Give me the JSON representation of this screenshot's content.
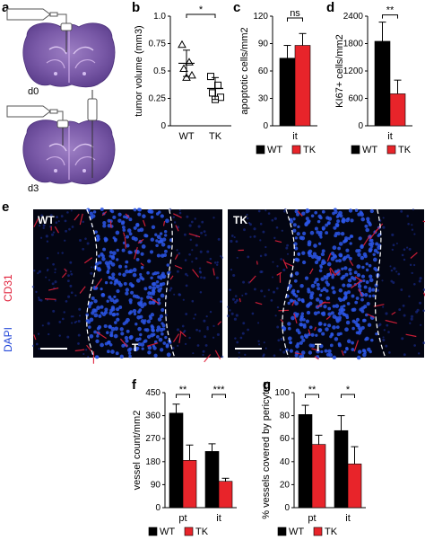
{
  "panels": {
    "a": "a",
    "b": "b",
    "c": "c",
    "d": "d",
    "e": "e",
    "f": "f",
    "g": "g"
  },
  "brain": {
    "d0": "d0",
    "d3": "d3"
  },
  "legend": {
    "wt": "WT",
    "tk": "TK"
  },
  "micro": {
    "wt": "WT",
    "tk": "TK",
    "t1": "T",
    "t2": "T",
    "cd31": "CD31",
    "dapi": "DAPI"
  },
  "colors": {
    "wt": "#000000",
    "tk": "#e8242a",
    "dapi": "#2448d8",
    "cd31": "#e0203a"
  },
  "chart_data": [
    {
      "id": "b",
      "type": "scatter",
      "ylabel": "tumor volume (mm3)",
      "ylim": [
        0,
        1.0
      ],
      "yticks": [
        0,
        0.25,
        0.5,
        0.75,
        1.0
      ],
      "categories": [
        "WT",
        "TK"
      ],
      "groups": [
        {
          "name": "WT",
          "points": [
            0.74,
            0.58,
            0.52,
            0.46,
            0.44
          ],
          "mean": 0.57,
          "error": 0.12
        },
        {
          "name": "TK",
          "points": [
            0.45,
            0.37,
            0.3,
            0.26,
            0.24
          ],
          "mean": 0.34,
          "error": 0.1
        }
      ],
      "significance": "*"
    },
    {
      "id": "c",
      "type": "bar",
      "ylabel": "apoptotic cells/mm2",
      "ylim": [
        0,
        120
      ],
      "yticks": [
        0,
        30,
        60,
        90,
        120
      ],
      "categories": [
        "it"
      ],
      "series": [
        {
          "name": "WT",
          "values": [
            74
          ],
          "error": [
            14
          ]
        },
        {
          "name": "TK",
          "values": [
            88
          ],
          "error": [
            13
          ]
        }
      ],
      "significance": "ns"
    },
    {
      "id": "d",
      "type": "bar",
      "ylabel": "KI67+ cells/mm2",
      "ylim": [
        0,
        2400
      ],
      "yticks": [
        0,
        600,
        1200,
        1800,
        2400
      ],
      "categories": [
        "it"
      ],
      "series": [
        {
          "name": "WT",
          "values": [
            1850
          ],
          "error": [
            420
          ]
        },
        {
          "name": "TK",
          "values": [
            700
          ],
          "error": [
            300
          ]
        }
      ],
      "significance": "**"
    },
    {
      "id": "f",
      "type": "bar",
      "ylabel": "vessel count/mm2",
      "ylim": [
        0,
        450
      ],
      "yticks": [
        0,
        90,
        180,
        270,
        360,
        450
      ],
      "categories": [
        "pt",
        "it"
      ],
      "series": [
        {
          "name": "WT",
          "values": [
            370,
            220
          ],
          "error": [
            35,
            30
          ]
        },
        {
          "name": "TK",
          "values": [
            185,
            103
          ],
          "error": [
            60,
            12
          ]
        }
      ],
      "significance": [
        "**",
        "***"
      ]
    },
    {
      "id": "g",
      "type": "bar",
      "ylabel": "% vessels covered by pericytes",
      "ylim": [
        0,
        100
      ],
      "yticks": [
        0,
        20,
        40,
        60,
        80,
        100
      ],
      "categories": [
        "pt",
        "it"
      ],
      "series": [
        {
          "name": "WT",
          "values": [
            81,
            67
          ],
          "error": [
            8,
            13
          ]
        },
        {
          "name": "TK",
          "values": [
            55,
            38
          ],
          "error": [
            8,
            15
          ]
        }
      ],
      "significance": [
        "**",
        "*"
      ]
    }
  ]
}
